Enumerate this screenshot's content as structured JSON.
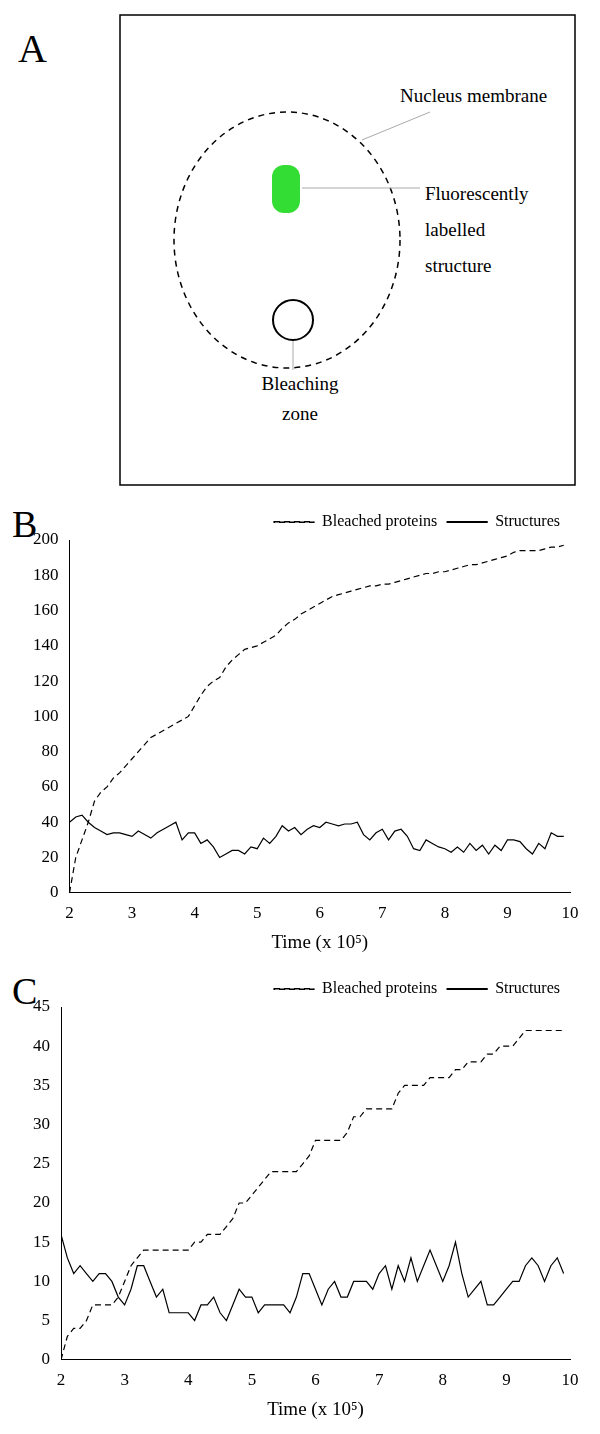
{
  "diagram": {
    "panel_label": "A",
    "labels": {
      "membrane": "Nucleus membrane",
      "structure": "Fluorescently labelled structure",
      "bleaching": "Bleaching zone"
    },
    "color": "#33dd33"
  },
  "chart_data": [
    {
      "type": "line",
      "panel_label": "B",
      "x_label": "Time (x 10⁵)",
      "xlim": [
        2,
        10
      ],
      "xticks": [
        2,
        3,
        4,
        5,
        6,
        7,
        8,
        9,
        10
      ],
      "ylim": [
        0,
        200
      ],
      "yticks": [
        0,
        20,
        40,
        60,
        80,
        100,
        120,
        140,
        160,
        180,
        200
      ],
      "grid": false,
      "legend": "top",
      "x": [
        2,
        2.1,
        2.2,
        2.3,
        2.4,
        2.5,
        2.6,
        2.7,
        2.8,
        2.9,
        3,
        3.1,
        3.2,
        3.3,
        3.4,
        3.5,
        3.6,
        3.7,
        3.8,
        3.9,
        4,
        4.1,
        4.2,
        4.3,
        4.4,
        4.5,
        4.6,
        4.7,
        4.8,
        4.9,
        5,
        5.1,
        5.2,
        5.3,
        5.4,
        5.5,
        5.6,
        5.7,
        5.8,
        5.9,
        6,
        6.1,
        6.2,
        6.3,
        6.4,
        6.5,
        6.6,
        6.7,
        6.8,
        6.9,
        7,
        7.1,
        7.2,
        7.3,
        7.4,
        7.5,
        7.6,
        7.7,
        7.8,
        7.9,
        8,
        8.1,
        8.2,
        8.3,
        8.4,
        8.5,
        8.6,
        8.7,
        8.8,
        8.9,
        9,
        9.1,
        9.2,
        9.3,
        9.4,
        9.5,
        9.6,
        9.7,
        9.8,
        9.9
      ],
      "series": [
        {
          "name": "Bleached proteins",
          "color": "#000000",
          "line_style": "dashed",
          "values": [
            0,
            20,
            30,
            40,
            52,
            57,
            60,
            65,
            68,
            72,
            76,
            80,
            84,
            88,
            90,
            92,
            94,
            96,
            98,
            100,
            106,
            112,
            117,
            120,
            122,
            128,
            132,
            135,
            138,
            139,
            140,
            142,
            144,
            146,
            150,
            153,
            155,
            158,
            160,
            162,
            164,
            166,
            168,
            169,
            170,
            171,
            172,
            173,
            174,
            174,
            175,
            175,
            176,
            177,
            178,
            179,
            180,
            181,
            181,
            182,
            182,
            183,
            184,
            185,
            186,
            186,
            187,
            188,
            189,
            190,
            191,
            193,
            194,
            194,
            194,
            194,
            195,
            196,
            196,
            197
          ]
        },
        {
          "name": "Structures",
          "color": "#000000",
          "line_style": "solid",
          "values": [
            40,
            43,
            44,
            40,
            37,
            35,
            33,
            34,
            34,
            33,
            32,
            35,
            33,
            31,
            34,
            36,
            38,
            40,
            30,
            34,
            34,
            28,
            30,
            26,
            20,
            22,
            24,
            24,
            22,
            26,
            25,
            31,
            28,
            32,
            38,
            35,
            37,
            33,
            36,
            38,
            37,
            40,
            39,
            38,
            39,
            39,
            40,
            33,
            30,
            34,
            36,
            30,
            35,
            36,
            32,
            25,
            24,
            30,
            28,
            26,
            25,
            23,
            26,
            23,
            28,
            24,
            27,
            22,
            27,
            24,
            30,
            30,
            29,
            25,
            22,
            28,
            25,
            34,
            32,
            32
          ]
        }
      ]
    },
    {
      "type": "line",
      "panel_label": "C",
      "x_label": "Time (x 10⁵)",
      "xlim": [
        2,
        10
      ],
      "xticks": [
        2,
        3,
        4,
        5,
        6,
        7,
        8,
        9,
        10
      ],
      "ylim": [
        0,
        45
      ],
      "yticks": [
        0,
        5,
        10,
        15,
        20,
        25,
        30,
        35,
        40,
        45
      ],
      "grid": false,
      "legend": "top",
      "x": [
        2,
        2.1,
        2.2,
        2.3,
        2.4,
        2.5,
        2.6,
        2.7,
        2.8,
        2.9,
        3,
        3.1,
        3.2,
        3.3,
        3.4,
        3.5,
        3.6,
        3.7,
        3.8,
        3.9,
        4,
        4.1,
        4.2,
        4.3,
        4.4,
        4.5,
        4.6,
        4.7,
        4.8,
        4.9,
        5,
        5.1,
        5.2,
        5.3,
        5.4,
        5.5,
        5.6,
        5.7,
        5.8,
        5.9,
        6,
        6.1,
        6.2,
        6.3,
        6.4,
        6.5,
        6.6,
        6.7,
        6.8,
        6.9,
        7,
        7.1,
        7.2,
        7.3,
        7.4,
        7.5,
        7.6,
        7.7,
        7.8,
        7.9,
        8,
        8.1,
        8.2,
        8.3,
        8.4,
        8.5,
        8.6,
        8.7,
        8.8,
        8.9,
        9,
        9.1,
        9.2,
        9.3,
        9.4,
        9.5,
        9.6,
        9.7,
        9.8,
        9.9
      ],
      "series": [
        {
          "name": "Bleached proteins",
          "color": "#000000",
          "line_style": "dashed",
          "values": [
            0,
            3,
            4,
            4,
            5,
            7,
            7,
            7,
            7,
            8,
            10,
            12,
            13,
            14,
            14,
            14,
            14,
            14,
            14,
            14,
            14,
            15,
            15,
            16,
            16,
            16,
            17,
            18,
            20,
            20,
            21,
            22,
            23,
            24,
            24,
            24,
            24,
            24,
            25,
            26,
            28,
            28,
            28,
            28,
            28,
            29,
            31,
            31,
            32,
            32,
            32,
            32,
            32,
            34,
            35,
            35,
            35,
            35,
            36,
            36,
            36,
            36,
            37,
            37,
            38,
            38,
            38,
            39,
            39,
            40,
            40,
            40,
            41,
            42,
            42,
            42,
            42,
            42,
            42,
            42
          ]
        },
        {
          "name": "Structures",
          "color": "#000000",
          "line_style": "solid",
          "values": [
            16,
            13,
            11,
            12,
            11,
            10,
            11,
            11,
            10,
            8,
            7,
            9,
            12,
            12,
            10,
            8,
            9,
            6,
            6,
            6,
            6,
            5,
            7,
            7,
            8,
            6,
            5,
            7,
            9,
            8,
            8,
            6,
            7,
            7,
            7,
            7,
            6,
            8,
            11,
            11,
            9,
            7,
            9,
            10,
            8,
            8,
            10,
            10,
            10,
            9,
            11,
            12,
            9,
            12,
            10,
            13,
            10,
            12,
            14,
            12,
            10,
            12,
            15,
            11,
            8,
            9,
            10,
            7,
            7,
            8,
            9,
            10,
            10,
            12,
            13,
            12,
            10,
            12,
            13,
            11
          ]
        }
      ]
    }
  ]
}
